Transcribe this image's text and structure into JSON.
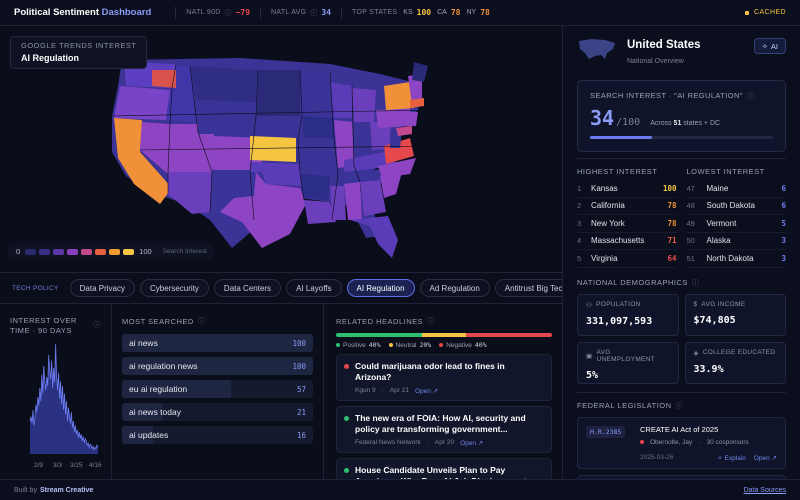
{
  "header": {
    "brand_a": "Political Sentiment",
    "brand_b": "Dashboard",
    "natl_90d_label": "NATL 90D",
    "natl_90d_value": "−79",
    "natl_avg_label": "NATL AVG",
    "natl_avg_value": "34",
    "top_states_label": "TOP STATES",
    "top_states": [
      {
        "state": "KS",
        "value": "100",
        "color": "#f5c542"
      },
      {
        "state": "CA",
        "value": "78",
        "color": "#f0913a"
      },
      {
        "state": "NY",
        "value": "78",
        "color": "#f0913a"
      }
    ],
    "cached": "CACHED"
  },
  "map": {
    "overlay_sub": "GOOGLE TRENDS INTEREST",
    "overlay_title": "AI Regulation",
    "legend_min": "0",
    "legend_max": "100",
    "legend_label": "Search Interest",
    "legend_colors": [
      "#272b6e",
      "#3b2f86",
      "#5b37a6",
      "#8a3fbf",
      "#c24a8c",
      "#e8603e",
      "#f09a32",
      "#f5c542"
    ]
  },
  "tabs": {
    "label": "TECH POLICY",
    "items": [
      "Data Privacy",
      "Cybersecurity",
      "Data Centers",
      "AI Layoffs",
      "AI Regulation",
      "Ad Regulation",
      "Antitrust Big Tech"
    ],
    "active": "AI Regulation"
  },
  "time_panel": {
    "title_1": "INTEREST OVER",
    "title_2": "TIME · 90 DAYS",
    "x_ticks": [
      "2/9",
      "3/3",
      "3/25",
      "4/16"
    ],
    "series": [
      30,
      34,
      28,
      40,
      26,
      33,
      45,
      38,
      52,
      44,
      60,
      48,
      72,
      55,
      80,
      66,
      58,
      70,
      62,
      90,
      75,
      68,
      85,
      60,
      78,
      65,
      100,
      70,
      58,
      74,
      50,
      66,
      45,
      62,
      40,
      55,
      36,
      48,
      30,
      42,
      34,
      28,
      38,
      24,
      30,
      20,
      26,
      18,
      22,
      15,
      20,
      14,
      18,
      12,
      16,
      10,
      14,
      12,
      8,
      10,
      6,
      9,
      8,
      5,
      7,
      4,
      6,
      5,
      8,
      6
    ]
  },
  "most_searched": {
    "title": "MOST SEARCHED",
    "items": [
      {
        "term": "ai news",
        "count": 100
      },
      {
        "term": "ai regulation news",
        "count": 100
      },
      {
        "term": "eu ai regulation",
        "count": 57
      },
      {
        "term": "ai news today",
        "count": 21
      },
      {
        "term": "ai updates",
        "count": 16
      }
    ]
  },
  "headlines": {
    "title": "RELATED HEADLINES",
    "sentiment": [
      {
        "label": "Positive",
        "value": "40%",
        "pct": 40,
        "color": "#2fbf71"
      },
      {
        "label": "Neutral",
        "value": "20%",
        "pct": 20,
        "color": "#f5c542"
      },
      {
        "label": "Negative",
        "value": "40%",
        "pct": 40,
        "color": "#e5484d"
      }
    ],
    "items": [
      {
        "title": "Could marijuana odor lead to fines in Arizona?",
        "source": "Kgun 9",
        "date": "Apr 21",
        "link": "Open ↗",
        "color": "#e5484d"
      },
      {
        "title": "The new era of FOIA: How AI, security and policy are transforming government...",
        "source": "Federal News Network",
        "date": "Apr 20",
        "link": "Open ↗",
        "color": "#2fbf71"
      },
      {
        "title": "House Candidate Unveils Plan to Pay Americans Who Face AI Job Displacement",
        "source": "",
        "date": "",
        "link": "",
        "color": "#2fbf71"
      }
    ]
  },
  "sidebar": {
    "country": "United States",
    "overview": "National Overview",
    "ai_button": "AI",
    "search_label": "SEARCH INTEREST · \"AI REGULATION\"",
    "score": "34",
    "score_den": "/100",
    "across_a": "Across",
    "across_b": "51",
    "across_c": "states + DC",
    "score_fraction": 0.34,
    "highest_title": "HIGHEST INTEREST",
    "lowest_title": "LOWEST INTEREST",
    "highest": [
      {
        "rank": "1",
        "state": "Kansas",
        "value": "100",
        "color": "#f5c542"
      },
      {
        "rank": "2",
        "state": "California",
        "value": "78",
        "color": "#f0913a"
      },
      {
        "rank": "3",
        "state": "New York",
        "value": "78",
        "color": "#f0913a"
      },
      {
        "rank": "4",
        "state": "Massachusetts",
        "value": "71",
        "color": "#e8603e"
      },
      {
        "rank": "5",
        "state": "Virginia",
        "value": "64",
        "color": "#e5484d"
      }
    ],
    "lowest": [
      {
        "rank": "47",
        "state": "Maine",
        "value": "6",
        "color": "#6c7cf0"
      },
      {
        "rank": "48",
        "state": "South Dakota",
        "value": "6",
        "color": "#6c7cf0"
      },
      {
        "rank": "49",
        "state": "Vermont",
        "value": "5",
        "color": "#6c7cf0"
      },
      {
        "rank": "50",
        "state": "Alaska",
        "value": "3",
        "color": "#6c7cf0"
      },
      {
        "rank": "51",
        "state": "North Dakota",
        "value": "3",
        "color": "#6c7cf0"
      }
    ],
    "demo_title": "NATIONAL DEMOGRAPHICS",
    "demo": [
      {
        "label": "POPULATION",
        "value": "331,097,593",
        "icon": "people-icon"
      },
      {
        "label": "AVG INCOME",
        "value": "$74,805",
        "icon": "dollar-icon"
      },
      {
        "label": "AVG UNEMPLOYMENT",
        "value": "5%",
        "icon": "briefcase-icon"
      },
      {
        "label": "COLLEGE EDUCATED",
        "value": "33.9%",
        "icon": "graduation-cap-icon"
      }
    ],
    "fed_title": "FEDERAL LEGISLATION",
    "bill": {
      "id": "H.R.2385",
      "title": "CREATE AI Act of 2025",
      "sponsor": "Obernolte, Jay",
      "cosponsors": "30 cosponsors",
      "date": "2025-03-26",
      "explain": "✧ Explain",
      "open": "Open ↗"
    }
  },
  "footer": {
    "built_by": "Built by",
    "company": "Stream Creative",
    "data_sources": "Data Sources"
  }
}
